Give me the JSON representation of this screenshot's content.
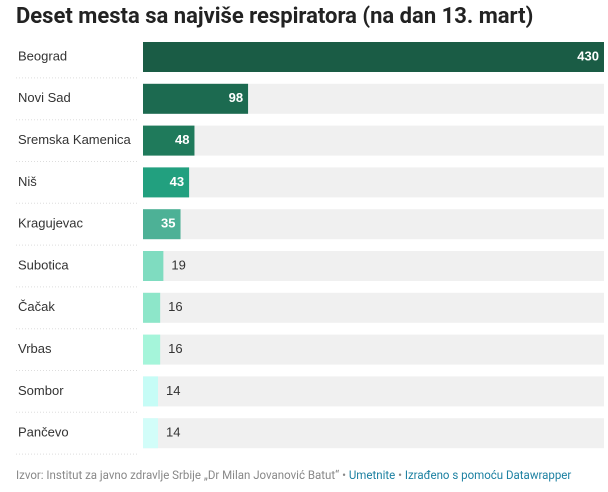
{
  "chart_data": {
    "type": "bar",
    "orientation": "horizontal",
    "title": "Deset mesta sa najviše respiratora (na dan 13. mart)",
    "categories": [
      "Beograd",
      "Novi Sad",
      "Sremska Kamenica",
      "Niš",
      "Kragujevac",
      "Subotica",
      "Čačak",
      "Vrbas",
      "Sombor",
      "Pančevo"
    ],
    "values": [
      430,
      98,
      48,
      43,
      35,
      19,
      16,
      16,
      14,
      14
    ],
    "colors": [
      "#1a5c45",
      "#1c6a50",
      "#1f7a5b",
      "#22a07f",
      "#4db196",
      "#7fdcc0",
      "#8de6c9",
      "#a5f5da",
      "#c6fcf6",
      "#d2fdf9"
    ],
    "xlim": [
      0,
      430
    ]
  },
  "footer": {
    "source": "Izvor: Institut za javno zdravlje Srbije „Dr Milan Jovanović Batut“",
    "separator": "•",
    "embed": "Umetnite",
    "credit": "Izrađeno s pomoću Datawrapper"
  }
}
